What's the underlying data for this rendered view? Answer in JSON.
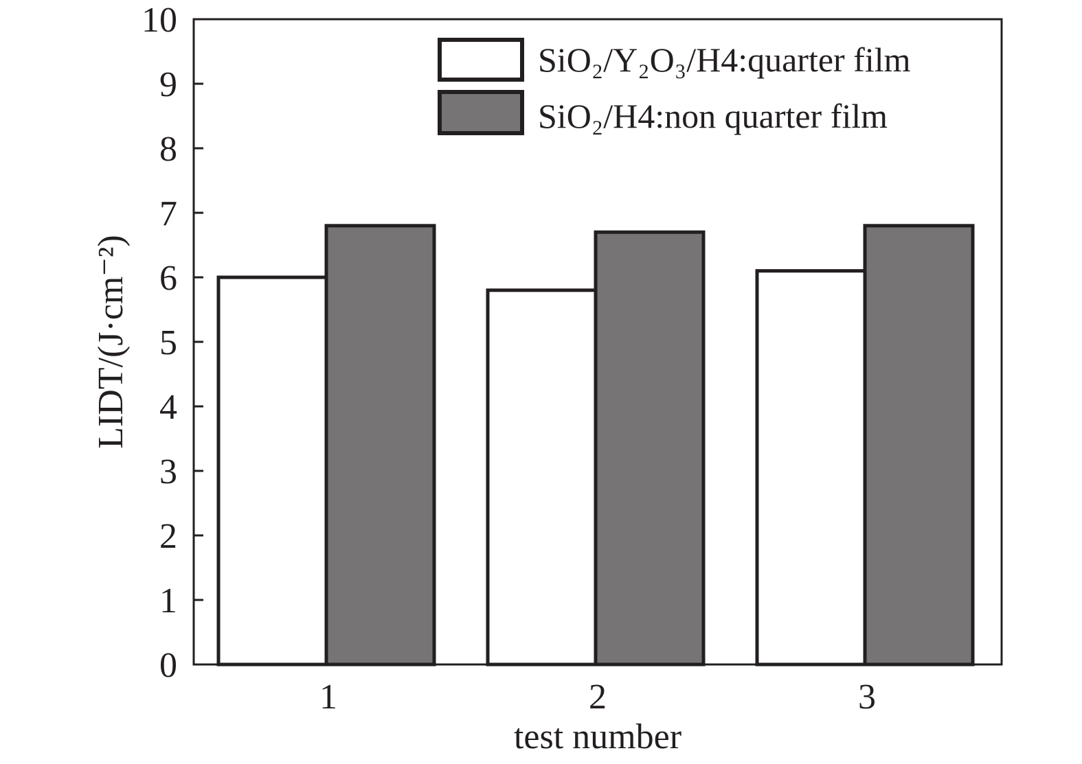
{
  "chart_data": {
    "type": "bar",
    "categories": [
      "1",
      "2",
      "3"
    ],
    "series": [
      {
        "name": "SiO₂/Y₂O₃/H4:quarter film",
        "values": [
          6.0,
          5.8,
          6.1
        ],
        "color": "#ffffff"
      },
      {
        "name": "SiO₂/H4:non quarter film",
        "values": [
          6.8,
          6.7,
          6.8
        ],
        "color": "#767474"
      }
    ],
    "xlabel": "test number",
    "ylabel": "LIDT/(J·cm⁻²)",
    "ylim": [
      0,
      10
    ],
    "yticks": [
      0,
      1,
      2,
      3,
      4,
      5,
      6,
      7,
      8,
      9,
      10
    ],
    "legend_position": "top-right",
    "grid": false,
    "outline_color": "#231f20"
  }
}
